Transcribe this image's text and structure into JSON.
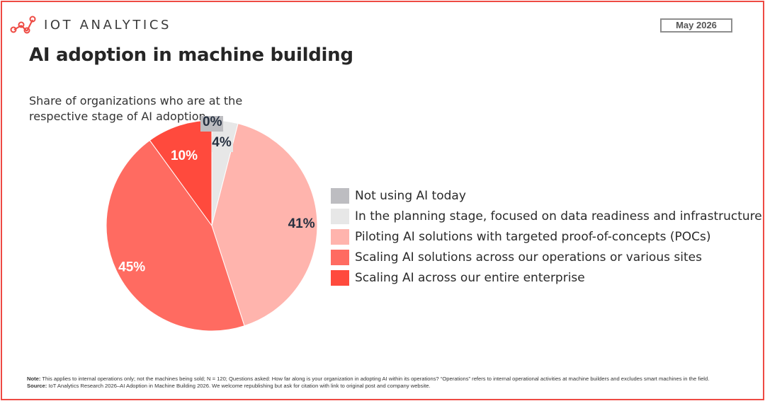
{
  "header": {
    "logo_text": "IOT ANALYTICS",
    "date": "May 2026"
  },
  "title": "AI adoption in machine building",
  "subtitle": "Share of organizations who are at the respective stage of AI adoption",
  "colors": {
    "frame": "#ee4a43",
    "logo_mark": "#ee4a43"
  },
  "chart_data": {
    "type": "pie",
    "title": "AI adoption in machine building",
    "subtitle": "Share of organizations who are at the respective stage of AI adoption",
    "slices": [
      {
        "label": "Not using AI today",
        "value": 0,
        "display": "0%",
        "color": "#bdbdc1"
      },
      {
        "label": "In the planning stage, focused on data readiness and infrastructure",
        "value": 4,
        "display": "4%",
        "color": "#e7e7e7"
      },
      {
        "label": "Piloting AI solutions with targeted proof-of-concepts (POCs)",
        "value": 41,
        "display": "41%",
        "color": "#ffb4ad"
      },
      {
        "label": "Scaling AI solutions across our operations or various sites",
        "value": 45,
        "display": "45%",
        "color": "#ff6b61"
      },
      {
        "label": "Scaling AI across our entire enterprise",
        "value": 10,
        "display": "10%",
        "color": "#ff4a3d"
      }
    ],
    "legend_position": "right"
  },
  "footnote": {
    "note_label": "Note:",
    "note_text": "This applies to internal operations only; not the machines being sold; N = 120; Questions asked: How far along is your organization in adopting AI within its operations? “Operations” refers to internal operational activities at machine builders and excludes smart machines in the field.",
    "source_label": "Source:",
    "source_text": "IoT Analytics Research 2026–AI Adoption in Machine Building 2026. We welcome republishing but ask for citation with link to original post and company website."
  }
}
